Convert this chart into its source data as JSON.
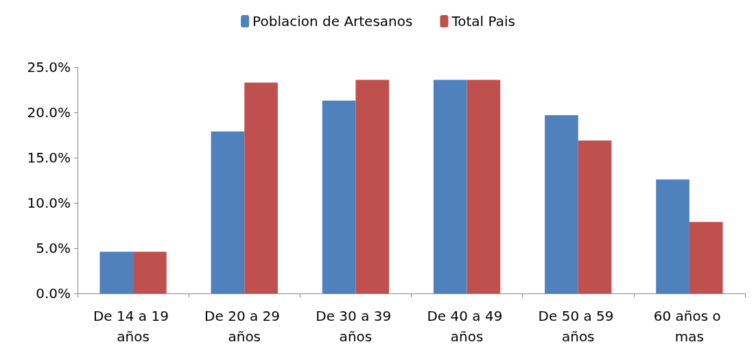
{
  "chart_data": {
    "type": "bar",
    "categories": [
      "De 14 a 19 años",
      "De 20 a 29 años",
      "De 30 a 39 años",
      "De 40 a 49 años",
      "De 50 a 59 años",
      "60 años o mas"
    ],
    "series": [
      {
        "name": "Poblacion de Artesanos",
        "color": "#4f81bd",
        "values": [
          4.6,
          17.9,
          21.3,
          23.6,
          19.7,
          12.6
        ]
      },
      {
        "name": "Total Pais",
        "color": "#c0504d",
        "values": [
          4.6,
          23.3,
          23.6,
          23.6,
          16.9,
          7.9
        ]
      }
    ],
    "ylim": [
      0,
      25
    ],
    "yticks": [
      {
        "value": 0,
        "label": "0.0%"
      },
      {
        "value": 5,
        "label": "5.0%"
      },
      {
        "value": 10,
        "label": "10.0%"
      },
      {
        "value": 15,
        "label": "15.0%"
      },
      {
        "value": 20,
        "label": "20.0%"
      },
      {
        "value": 25,
        "label": "25.0%"
      }
    ],
    "grid": false,
    "legend": "top"
  }
}
